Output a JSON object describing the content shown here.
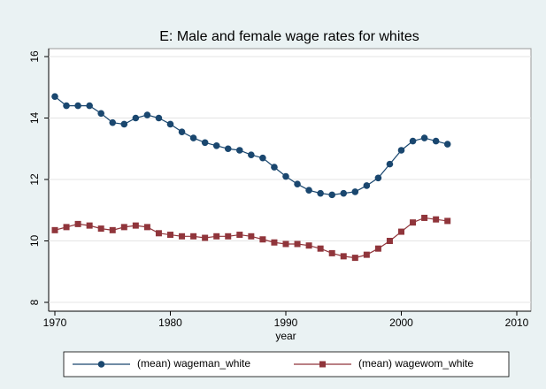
{
  "chart_data": {
    "type": "line",
    "title": "E: Male and female wage rates for whites",
    "x_label": "year",
    "x": [
      1970,
      1971,
      1972,
      1973,
      1974,
      1975,
      1976,
      1977,
      1978,
      1979,
      1980,
      1981,
      1982,
      1983,
      1984,
      1985,
      1986,
      1987,
      1988,
      1989,
      1990,
      1991,
      1992,
      1993,
      1994,
      1995,
      1996,
      1997,
      1998,
      1999,
      2000,
      2001,
      2002,
      2003,
      2004
    ],
    "series": [
      {
        "name": "(mean) wageman_white",
        "color": "#1a476f",
        "marker": "circle",
        "values": [
          14.7,
          14.4,
          14.4,
          14.4,
          14.15,
          13.85,
          13.8,
          14.0,
          14.1,
          14.0,
          13.8,
          13.55,
          13.35,
          13.2,
          13.1,
          13.0,
          12.95,
          12.8,
          12.7,
          12.4,
          12.1,
          11.85,
          11.65,
          11.55,
          11.5,
          11.55,
          11.6,
          11.8,
          12.05,
          12.5,
          12.95,
          13.25,
          13.35,
          13.25,
          13.15
        ]
      },
      {
        "name": "(mean) wagewom_white",
        "color": "#90353b",
        "marker": "square",
        "values": [
          10.35,
          10.45,
          10.55,
          10.5,
          10.4,
          10.35,
          10.45,
          10.5,
          10.45,
          10.25,
          10.2,
          10.15,
          10.15,
          10.1,
          10.15,
          10.15,
          10.2,
          10.15,
          10.05,
          9.95,
          9.9,
          9.9,
          9.85,
          9.75,
          9.6,
          9.5,
          9.45,
          9.55,
          9.75,
          10.0,
          10.3,
          10.6,
          10.75,
          10.7,
          10.65
        ]
      }
    ],
    "xlim": [
      1970,
      2010
    ],
    "xticks": [
      1970,
      1980,
      1990,
      2000,
      2010
    ],
    "ylim": [
      8,
      16
    ],
    "yticks": [
      8,
      10,
      12,
      14,
      16
    ],
    "grid": true,
    "legend": "bottom"
  }
}
